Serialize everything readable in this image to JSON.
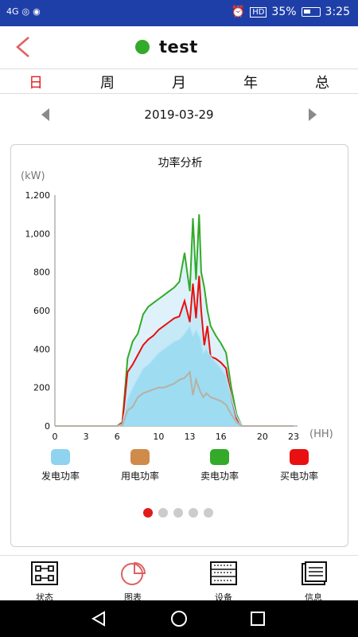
{
  "status_bar": {
    "network": "4G",
    "battery_percent": "35%",
    "time": "3:25",
    "hd_badge": "HD"
  },
  "header": {
    "title": "test",
    "status_color": "#33aa2a"
  },
  "tabs": [
    {
      "label": "日",
      "active": true
    },
    {
      "label": "周",
      "active": false
    },
    {
      "label": "月",
      "active": false
    },
    {
      "label": "年",
      "active": false
    },
    {
      "label": "总",
      "active": false
    }
  ],
  "date_nav": {
    "date": "2019-03-29"
  },
  "chart_card": {
    "title": "功率分析"
  },
  "chart_data": {
    "type": "area",
    "title": "功率分析",
    "ylabel": "(kW)",
    "xlabel": "(HH)",
    "ylim": [
      0,
      1200
    ],
    "xlim": [
      0,
      23
    ],
    "yticks": [
      "0",
      "200",
      "400",
      "600",
      "800",
      "1,000",
      "1,200"
    ],
    "xticks": [
      "0",
      "3",
      "6",
      "10",
      "13",
      "16",
      "20",
      "23"
    ],
    "grid": false,
    "legend_position": "bottom",
    "series": [
      {
        "name": "发电功率",
        "color": "#8fd3ef",
        "x": [
          0,
          6,
          6.5,
          7,
          7.5,
          8,
          8.5,
          9,
          9.5,
          10,
          10.5,
          11,
          11.5,
          12,
          12.5,
          13,
          13.3,
          13.6,
          14,
          14.3,
          14.6,
          15,
          15.5,
          16,
          16.5,
          17,
          17.5,
          18,
          23
        ],
        "y": [
          0,
          0,
          10,
          140,
          200,
          250,
          300,
          320,
          350,
          380,
          400,
          420,
          440,
          450,
          480,
          520,
          470,
          500,
          460,
          380,
          400,
          360,
          330,
          300,
          260,
          150,
          50,
          0,
          0
        ]
      },
      {
        "name": "用电功率",
        "color": "#d08a4a",
        "x": [
          0,
          6,
          6.5,
          7,
          7.5,
          8,
          8.5,
          9,
          9.5,
          10,
          10.5,
          11,
          11.5,
          12,
          12.5,
          13,
          13.3,
          13.6,
          14,
          14.3,
          14.6,
          15,
          15.5,
          16,
          16.5,
          17,
          17.5,
          18,
          23
        ],
        "y": [
          0,
          0,
          5,
          80,
          100,
          150,
          170,
          180,
          190,
          200,
          200,
          210,
          220,
          240,
          250,
          280,
          160,
          240,
          180,
          150,
          170,
          150,
          140,
          130,
          110,
          60,
          20,
          0,
          0
        ]
      },
      {
        "name": "卖电功率",
        "color": "#33aa2a",
        "x": [
          0,
          6,
          6.5,
          7,
          7.5,
          8,
          8.5,
          9,
          9.5,
          10,
          10.5,
          11,
          11.5,
          12,
          12.5,
          13,
          13.3,
          13.6,
          13.9,
          14.1,
          14.4,
          14.7,
          15,
          15.5,
          16,
          16.5,
          17,
          17.5,
          18,
          23
        ],
        "y": [
          0,
          0,
          20,
          350,
          440,
          480,
          580,
          620,
          640,
          660,
          680,
          700,
          720,
          750,
          900,
          700,
          1080,
          760,
          1100,
          800,
          720,
          600,
          520,
          470,
          430,
          380,
          200,
          60,
          0,
          0
        ]
      },
      {
        "name": "买电功率",
        "color": "#e81010",
        "x": [
          0,
          6,
          6.5,
          7,
          7.5,
          8,
          8.5,
          9,
          9.5,
          10,
          10.5,
          11,
          11.5,
          12,
          12.5,
          13,
          13.3,
          13.6,
          13.9,
          14.1,
          14.4,
          14.7,
          15,
          15.5,
          16,
          16.5,
          17,
          17.5,
          18,
          23
        ],
        "y": [
          0,
          0,
          15,
          280,
          320,
          370,
          420,
          450,
          470,
          500,
          520,
          540,
          560,
          570,
          650,
          540,
          740,
          560,
          780,
          600,
          420,
          520,
          360,
          350,
          330,
          300,
          150,
          40,
          0,
          0
        ]
      }
    ]
  },
  "legend": [
    {
      "label": "发电功率",
      "color": "#8fd3ef"
    },
    {
      "label": "用电功率",
      "color": "#d08a4a"
    },
    {
      "label": "卖电功率",
      "color": "#33aa2a"
    },
    {
      "label": "买电功率",
      "color": "#e81010"
    }
  ],
  "pager": {
    "total": 5,
    "active": 0
  },
  "bottom_nav": [
    {
      "label": "状态",
      "icon": "status-grid-icon"
    },
    {
      "label": "图表",
      "icon": "pie-chart-icon"
    },
    {
      "label": "设备",
      "icon": "device-icon"
    },
    {
      "label": "信息",
      "icon": "info-document-icon"
    }
  ]
}
